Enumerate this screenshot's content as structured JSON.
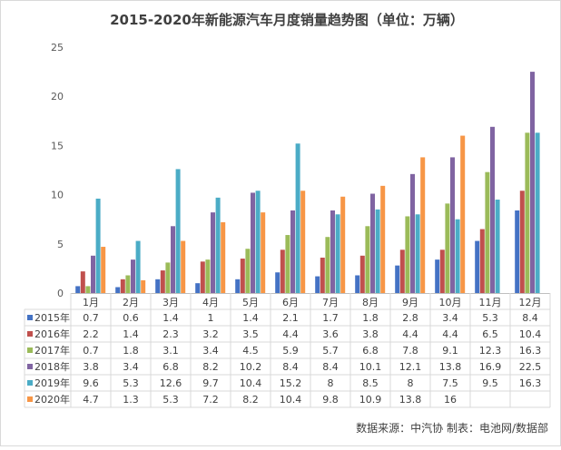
{
  "chart_data": {
    "type": "bar",
    "title": "2015-2020年新能源汽车月度销量趋势图（单位：万辆）",
    "categories": [
      "1月",
      "2月",
      "3月",
      "4月",
      "5月",
      "6月",
      "7月",
      "8月",
      "9月",
      "10月",
      "11月",
      "12月"
    ],
    "ylim": [
      0,
      25
    ],
    "yticks": [
      "0",
      "5",
      "10",
      "15",
      "20",
      "25"
    ],
    "grid": false,
    "legend": "data-table",
    "series": [
      {
        "name": "2015年",
        "color": "#4472C4",
        "values": [
          0.7,
          0.6,
          1.4,
          1.0,
          1.4,
          2.1,
          1.7,
          1.8,
          2.8,
          3.4,
          5.3,
          8.4
        ]
      },
      {
        "name": "2016年",
        "color": "#C0504D",
        "values": [
          2.2,
          1.4,
          2.3,
          3.2,
          3.5,
          4.4,
          3.6,
          3.8,
          4.4,
          4.4,
          6.5,
          10.4
        ]
      },
      {
        "name": "2017年",
        "color": "#9BBB59",
        "values": [
          0.7,
          1.8,
          3.1,
          3.4,
          4.5,
          5.9,
          5.7,
          6.8,
          7.8,
          9.1,
          12.3,
          16.3
        ]
      },
      {
        "name": "2018年",
        "color": "#8064A2",
        "values": [
          3.8,
          3.4,
          6.8,
          8.2,
          10.2,
          8.4,
          8.4,
          10.1,
          12.1,
          13.8,
          16.9,
          22.5
        ]
      },
      {
        "name": "2019年",
        "color": "#4BACC6",
        "values": [
          9.6,
          5.3,
          12.6,
          9.7,
          10.4,
          15.2,
          8,
          8.5,
          8,
          7.5,
          9.5,
          16.3
        ]
      },
      {
        "name": "2020年",
        "color": "#F79646",
        "values": [
          4.7,
          1.3,
          5.3,
          7.2,
          8.2,
          10.4,
          9.8,
          10.9,
          13.8,
          16,
          null,
          null
        ]
      }
    ],
    "source_note": "数据来源：中汽协  制表：电池网/数据部"
  }
}
